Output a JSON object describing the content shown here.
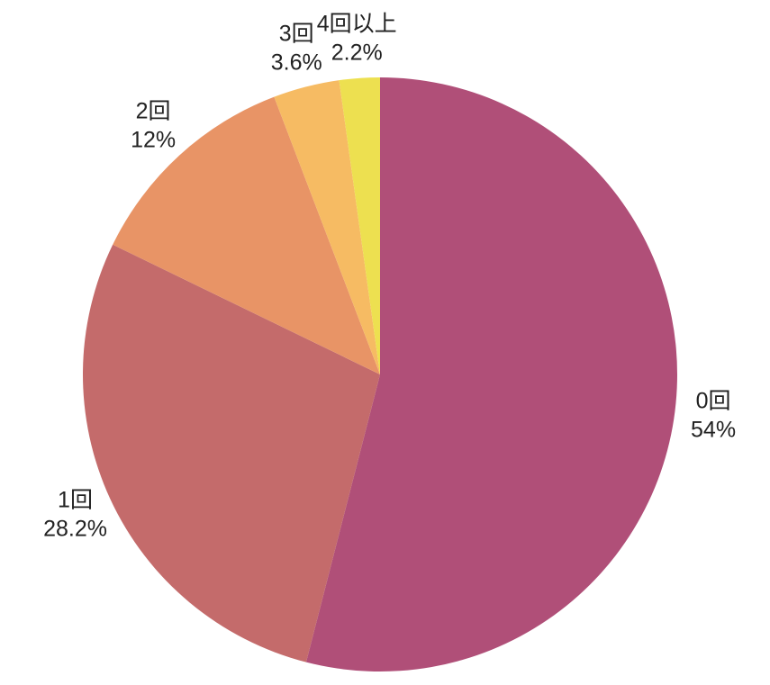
{
  "chart_data": {
    "type": "pie",
    "categories": [
      "0回",
      "1回",
      "2回",
      "3回",
      "4回以上"
    ],
    "values": [
      54,
      28.2,
      12,
      3.6,
      2.2
    ],
    "value_labels": [
      "54%",
      "28.2%",
      "12%",
      "3.6%",
      "2.2%"
    ],
    "colors": [
      "#b04f78",
      "#c46b6b",
      "#e89466",
      "#f6bb63",
      "#ede050"
    ]
  }
}
